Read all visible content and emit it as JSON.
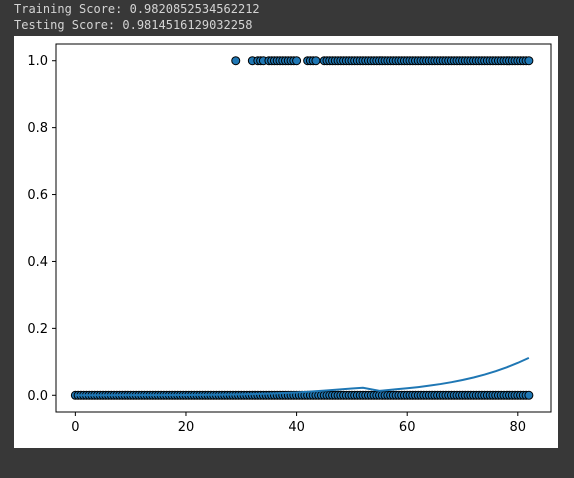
{
  "output": {
    "line1": "Training Score: 0.9820852534562212",
    "line2": "Testing Score: 0.9814516129032258"
  },
  "chart_data": {
    "type": "scatter",
    "xlim": [
      -3.5,
      86
    ],
    "ylim": [
      -0.05,
      1.05
    ],
    "x_ticks": [
      0,
      20,
      40,
      60,
      80
    ],
    "y_ticks": [
      0.0,
      0.2,
      0.4,
      0.6,
      0.8,
      1.0
    ],
    "x_tick_labels": [
      "0",
      "20",
      "40",
      "60",
      "80"
    ],
    "y_tick_labels": [
      "0.0",
      "0.2",
      "0.4",
      "0.6",
      "0.8",
      "1.0"
    ],
    "grid": false,
    "colors": {
      "marker_fill": "#1f77b4",
      "marker_edge": "#000000",
      "curve": "#1f77b4"
    },
    "series": [
      {
        "type": "scatter",
        "x": [
          0,
          0.5,
          1,
          1.5,
          2,
          2.5,
          3,
          3.5,
          4,
          4.5,
          5,
          5.5,
          6,
          6.5,
          7,
          7.5,
          8,
          8.5,
          9,
          9.5,
          10,
          10.5,
          11,
          11.5,
          12,
          12.5,
          13,
          13.5,
          14,
          14.5,
          15,
          15.5,
          16,
          16.5,
          17,
          17.5,
          18,
          18.5,
          19,
          19.5,
          20,
          20.5,
          21,
          21.5,
          22,
          22.5,
          23,
          23.5,
          24,
          24.5,
          25,
          25.5,
          26,
          26.5,
          27,
          27.5,
          28,
          28.5,
          29,
          29.5,
          30,
          30.5,
          31,
          31.5,
          32,
          32.5,
          33,
          33.5,
          34,
          34.5,
          35,
          35.5,
          36,
          36.5,
          37,
          37.5,
          38,
          38.5,
          39,
          39.5,
          40,
          40.5,
          41,
          41.5,
          42,
          42.5,
          43,
          43.5,
          44,
          44.5,
          45,
          45.5,
          46,
          46.5,
          47,
          47.5,
          48,
          48.5,
          49,
          49.5,
          50,
          50.5,
          51,
          51.5,
          52,
          52.5,
          53,
          53.5,
          54,
          54.5,
          55,
          55.5,
          56,
          56.5,
          57,
          57.5,
          58,
          58.5,
          59,
          59.5,
          60,
          60.5,
          61,
          61.5,
          62,
          62.5,
          63,
          63.5,
          64,
          64.5,
          65,
          65.5,
          66,
          66.5,
          67,
          67.5,
          68,
          68.5,
          69,
          69.5,
          70,
          70.5,
          71,
          71.5,
          72,
          72.5,
          73,
          73.5,
          74,
          74.5,
          75,
          75.5,
          76,
          76.5,
          77,
          77.5,
          78,
          78.5,
          79,
          79.5,
          80,
          80.5,
          81,
          81.5,
          82
        ],
        "y": [
          0,
          0,
          0,
          0,
          0,
          0,
          0,
          0,
          0,
          0,
          0,
          0,
          0,
          0,
          0,
          0,
          0,
          0,
          0,
          0,
          0,
          0,
          0,
          0,
          0,
          0,
          0,
          0,
          0,
          0,
          0,
          0,
          0,
          0,
          0,
          0,
          0,
          0,
          0,
          0,
          0,
          0,
          0,
          0,
          0,
          0,
          0,
          0,
          0,
          0,
          0,
          0,
          0,
          0,
          0,
          0,
          0,
          0,
          0,
          0,
          0,
          0,
          0,
          0,
          0,
          0,
          0,
          0,
          0,
          0,
          0,
          0,
          0,
          0,
          0,
          0,
          0,
          0,
          0,
          0,
          0,
          0,
          0,
          0,
          0,
          0,
          0,
          0,
          0,
          0,
          0,
          0,
          0,
          0,
          0,
          0,
          0,
          0,
          0,
          0,
          0,
          0,
          0,
          0,
          0,
          0,
          0,
          0,
          0,
          0,
          0,
          0,
          0,
          0,
          0,
          0,
          0,
          0,
          0,
          0,
          0,
          0,
          0,
          0,
          0,
          0,
          0,
          0,
          0,
          0,
          0,
          0,
          0,
          0,
          0,
          0,
          0,
          0,
          0,
          0,
          0,
          0,
          0,
          0,
          0,
          0,
          0,
          0,
          0,
          0,
          0,
          0,
          0,
          0,
          0,
          0,
          0,
          0,
          0,
          0,
          0,
          0,
          0,
          0,
          0
        ]
      },
      {
        "type": "scatter",
        "x": [
          29,
          32,
          33,
          33.5,
          34,
          35,
          35.5,
          36,
          36.5,
          37,
          37.5,
          38,
          38.5,
          39,
          39.5,
          40,
          42,
          42.5,
          43,
          43.5,
          45,
          45.5,
          46,
          46.5,
          47,
          47.5,
          48,
          48.5,
          49,
          49.5,
          50,
          50.5,
          51,
          51.5,
          52,
          52.5,
          53,
          53.5,
          54,
          54.5,
          55,
          55.5,
          56,
          56.5,
          57,
          57.5,
          58,
          58.5,
          59,
          59.5,
          60,
          60.5,
          61,
          61.5,
          62,
          62.5,
          63,
          63.5,
          64,
          64.5,
          65,
          65.5,
          66,
          66.5,
          67,
          67.5,
          68,
          68.5,
          69,
          69.5,
          70,
          70.5,
          71,
          71.5,
          72,
          72.5,
          73,
          73.5,
          74,
          74.5,
          75,
          75.5,
          76,
          76.5,
          77,
          77.5,
          78,
          78.5,
          79,
          79.5,
          80,
          80.5,
          81,
          81.5,
          82
        ],
        "y": [
          1,
          1,
          1,
          1,
          1,
          1,
          1,
          1,
          1,
          1,
          1,
          1,
          1,
          1,
          1,
          1,
          1,
          1,
          1,
          1,
          1,
          1,
          1,
          1,
          1,
          1,
          1,
          1,
          1,
          1,
          1,
          1,
          1,
          1,
          1,
          1,
          1,
          1,
          1,
          1,
          1,
          1,
          1,
          1,
          1,
          1,
          1,
          1,
          1,
          1,
          1,
          1,
          1,
          1,
          1,
          1,
          1,
          1,
          1,
          1,
          1,
          1,
          1,
          1,
          1,
          1,
          1,
          1,
          1,
          1,
          1,
          1,
          1,
          1,
          1,
          1,
          1,
          1,
          1,
          1,
          1,
          1,
          1,
          1,
          1,
          1,
          1,
          1,
          1,
          1,
          1,
          1,
          1,
          1,
          1
        ]
      },
      {
        "type": "line",
        "x": [
          0,
          5,
          10,
          15,
          20,
          25,
          30,
          35,
          40,
          45,
          50,
          52,
          55,
          58,
          60,
          62,
          64,
          66,
          68,
          70,
          72,
          74,
          76,
          78,
          80,
          82
        ],
        "y": [
          0.0001,
          0.0002,
          0.0003,
          0.0005,
          0.0009,
          0.0016,
          0.0028,
          0.0048,
          0.0082,
          0.014,
          0.0204,
          0.0225,
          0.0132,
          0.018,
          0.021,
          0.0245,
          0.0287,
          0.0335,
          0.0391,
          0.0456,
          0.0532,
          0.062,
          0.0721,
          0.0837,
          0.0969,
          0.1118
        ]
      }
    ]
  }
}
